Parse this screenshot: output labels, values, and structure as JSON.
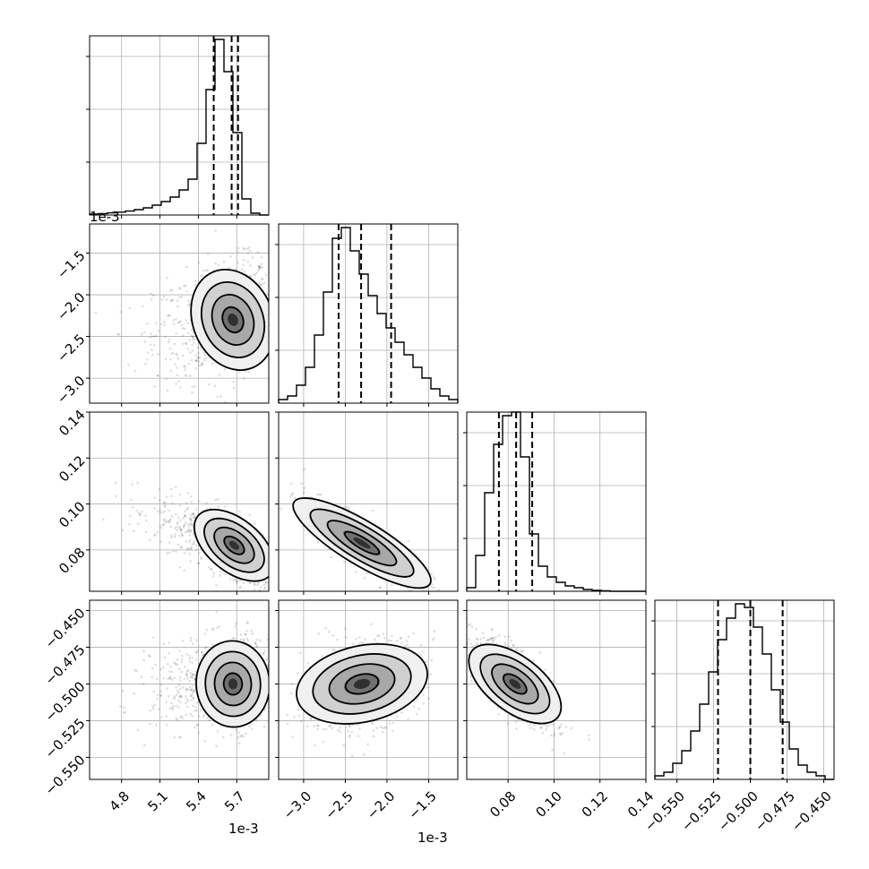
{
  "chart_data": {
    "type": "corner",
    "title": "",
    "grid": true,
    "parameters": [
      {
        "index": 0,
        "range": [
          4.55,
          5.95
        ],
        "scale_exponent": "1e-3",
        "ticks": [
          4.8,
          5.1,
          5.4,
          5.7
        ],
        "tick_labels": [
          "4.8",
          "5.1",
          "5.4",
          "5.7"
        ],
        "histogram": {
          "bin_edges": [
            4.55,
            4.62,
            4.69,
            4.76,
            4.83,
            4.9,
            4.97,
            5.04,
            5.11,
            5.18,
            5.25,
            5.32,
            5.39,
            5.46,
            5.53,
            5.6,
            5.67,
            5.74,
            5.81,
            5.88,
            5.95
          ],
          "counts": [
            0.005,
            0.008,
            0.012,
            0.016,
            0.022,
            0.03,
            0.04,
            0.055,
            0.075,
            0.1,
            0.14,
            0.2,
            0.4,
            0.7,
            0.98,
            0.8,
            0.46,
            0.09,
            0.01,
            0.0
          ],
          "quantiles": [
            5.52,
            5.66,
            5.71
          ]
        }
      },
      {
        "index": 1,
        "range": [
          -3.3,
          -1.15
        ],
        "scale_exponent": "1e-3",
        "ticks": [
          -3.0,
          -2.5,
          -2.0,
          -1.5
        ],
        "tick_labels": [
          "−3.0",
          "−2.5",
          "−2.0",
          "−1.5"
        ],
        "histogram": {
          "bin_edges": [
            -3.3,
            -3.1925,
            -3.085,
            -2.9775,
            -2.87,
            -2.7625,
            -2.655,
            -2.5475,
            -2.44,
            -2.3325,
            -2.225,
            -2.1175,
            -2.01,
            -1.9025,
            -1.795,
            -1.6875,
            -1.58,
            -1.4725,
            -1.365,
            -1.2575,
            -1.15
          ],
          "counts": [
            0.02,
            0.04,
            0.1,
            0.2,
            0.38,
            0.62,
            0.92,
            0.98,
            0.85,
            0.72,
            0.6,
            0.5,
            0.42,
            0.34,
            0.27,
            0.2,
            0.14,
            0.08,
            0.04,
            0.02
          ],
          "quantiles": [
            -2.58,
            -2.31,
            -1.95
          ]
        }
      },
      {
        "index": 2,
        "range": [
          0.062,
          0.14
        ],
        "ticks": [
          0.08,
          0.1,
          0.12,
          0.14
        ],
        "tick_labels": [
          "0.08",
          "0.10",
          "0.12",
          "0.14"
        ],
        "histogram": {
          "bin_edges": [
            0.062,
            0.0659,
            0.0698,
            0.0737,
            0.0776,
            0.0815,
            0.0854,
            0.0893,
            0.0932,
            0.0971,
            0.101,
            0.1049,
            0.1088,
            0.1127,
            0.1166,
            0.1205,
            0.1244,
            0.1283,
            0.1322,
            0.1361,
            0.14
          ],
          "counts": [
            0.02,
            0.2,
            0.55,
            0.82,
            0.98,
            1.0,
            0.75,
            0.32,
            0.14,
            0.08,
            0.05,
            0.03,
            0.02,
            0.01,
            0.005,
            0.003,
            0.0,
            0.0,
            0.0,
            0.0
          ],
          "quantiles": [
            0.076,
            0.0835,
            0.0905
          ]
        }
      },
      {
        "index": 3,
        "range": [
          -0.565,
          -0.443
        ],
        "ticks": [
          -0.55,
          -0.525,
          -0.5,
          -0.475,
          -0.45
        ],
        "tick_labels": [
          "−0.450",
          "−0.475",
          "−0.500",
          "−0.525",
          "−0.550"
        ],
        "bottom_tick_labels": [
          "−0.550",
          "−0.525",
          "−0.500",
          "−0.475",
          "−0.450"
        ],
        "histogram": {
          "bin_edges": [
            -0.565,
            -0.5589,
            -0.5528,
            -0.5467,
            -0.5406,
            -0.5345,
            -0.5284,
            -0.5223,
            -0.5162,
            -0.5101,
            -0.504,
            -0.4979,
            -0.4918,
            -0.4857,
            -0.4796,
            -0.4735,
            -0.4674,
            -0.4613,
            -0.4552,
            -0.4491,
            -0.443
          ],
          "counts": [
            0.02,
            0.04,
            0.09,
            0.16,
            0.27,
            0.42,
            0.6,
            0.78,
            0.9,
            0.98,
            0.96,
            0.85,
            0.7,
            0.5,
            0.32,
            0.17,
            0.08,
            0.04,
            0.02,
            0.0
          ],
          "quantiles": [
            -0.522,
            -0.5,
            -0.478
          ]
        }
      }
    ],
    "pairs": [
      {
        "x": 0,
        "y": 1,
        "mean": [
          5.67,
          -2.3
        ],
        "sd": [
          0.14,
          0.35
        ],
        "rho": 0.25
      },
      {
        "x": 0,
        "y": 2,
        "mean": [
          5.68,
          0.082
        ],
        "sd": [
          0.14,
          0.009
        ],
        "rho": -0.7
      },
      {
        "x": 1,
        "y": 2,
        "mean": [
          -2.3,
          0.083
        ],
        "sd": [
          0.35,
          0.009
        ],
        "rho": -0.85
      },
      {
        "x": 0,
        "y": 3,
        "mean": [
          5.67,
          -0.5
        ],
        "sd": [
          0.14,
          0.015
        ],
        "rho": 0.05
      },
      {
        "x": 1,
        "y": 3,
        "mean": [
          -2.3,
          -0.5
        ],
        "sd": [
          0.35,
          0.015
        ],
        "rho": 0.3
      },
      {
        "x": 2,
        "y": 3,
        "mean": [
          0.083,
          -0.5
        ],
        "sd": [
          0.009,
          0.015
        ],
        "rho": -0.72
      }
    ]
  }
}
